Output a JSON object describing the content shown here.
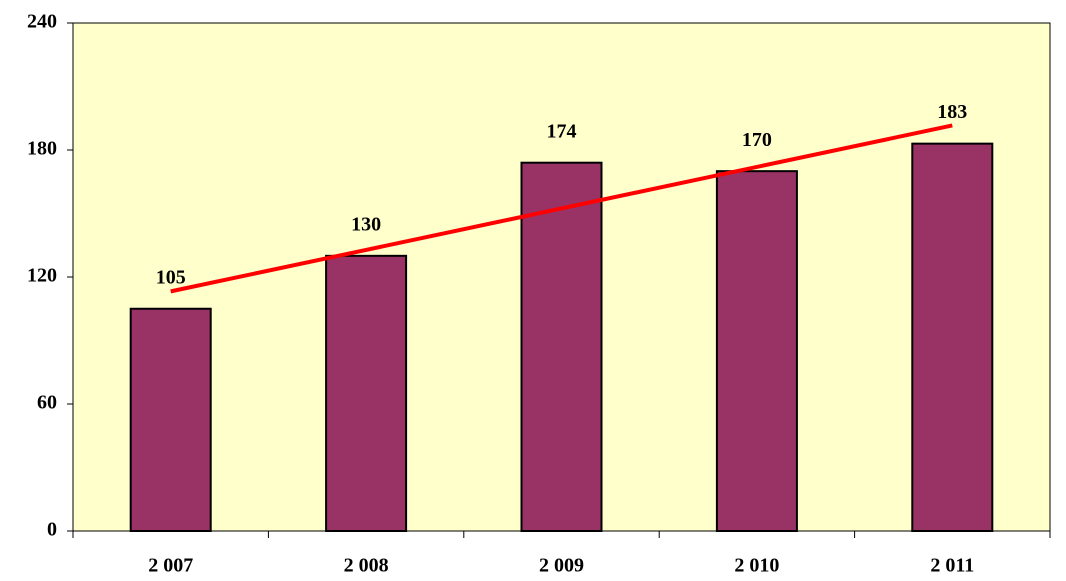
{
  "chart_data": {
    "type": "bar",
    "categories": [
      "2 007",
      "2 008",
      "2 009",
      "2 010",
      "2 011"
    ],
    "values": [
      105,
      130,
      174,
      170,
      183
    ],
    "color": "#993366",
    "background": "#ffffcc",
    "ylim": [
      0,
      240
    ],
    "yticks": [
      0,
      60,
      120,
      180,
      240
    ],
    "grid": false,
    "trendline": {
      "type": "linear",
      "color": "#ff0000"
    }
  }
}
